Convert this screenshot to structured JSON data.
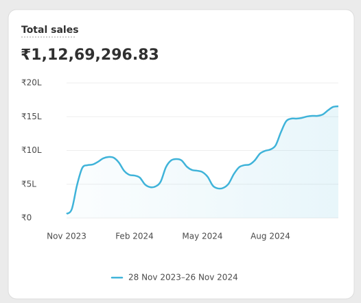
{
  "chart_data": {
    "type": "line",
    "title": "Total sales",
    "summary": "₹1,12,69,296.83",
    "categories": [
      "Nov 2023",
      null,
      null,
      null,
      null,
      null,
      null,
      null,
      null,
      null,
      null,
      null,
      null,
      "Feb 2024",
      null,
      null,
      null,
      null,
      null,
      null,
      null,
      null,
      null,
      null,
      null,
      null,
      "May 2024",
      null,
      null,
      null,
      null,
      null,
      null,
      null,
      null,
      null,
      null,
      null,
      null,
      "Aug 2024",
      null,
      null,
      null,
      null,
      null,
      null,
      null,
      null,
      null,
      null,
      null,
      null,
      null
    ],
    "series": [
      {
        "name": "28 Nov 2023–26 Nov 2024",
        "color": "#3fb3d9",
        "values": [
          61000,
          132000,
          487000,
          741000,
          782000,
          792000,
          832000,
          883000,
          904000,
          893000,
          822000,
          700000,
          640000,
          629000,
          599000,
          497000,
          457000,
          467000,
          538000,
          751000,
          853000,
          873000,
          853000,
          761000,
          711000,
          700000,
          680000,
          609000,
          477000,
          437000,
          447000,
          508000,
          650000,
          751000,
          782000,
          792000,
          853000,
          954000,
          995000,
          1015000,
          1076000,
          1269000,
          1431000,
          1472000,
          1472000,
          1482000,
          1503000,
          1513000,
          1513000,
          1533000,
          1594000,
          1645000,
          1655000
        ]
      }
    ],
    "ylim": [
      0,
      2000000
    ],
    "yticks": [
      {
        "value": 0,
        "label": "₹0"
      },
      {
        "value": 500000,
        "label": "₹5L"
      },
      {
        "value": 1000000,
        "label": "₹10L"
      },
      {
        "value": 1500000,
        "label": "₹15L"
      },
      {
        "value": 2000000,
        "label": "₹20L"
      }
    ],
    "grid": true,
    "legend": "bottom"
  }
}
